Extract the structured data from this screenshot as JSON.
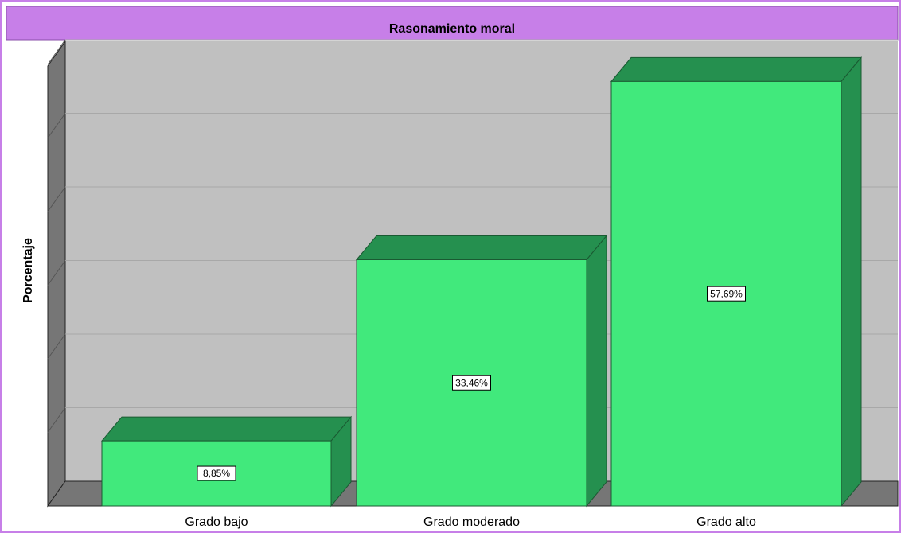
{
  "chart_data": {
    "type": "bar3d",
    "title": "Rasonamiento moral",
    "y_label": "Porcentaje",
    "categories": [
      "Grado bajo",
      "Grado moderado",
      "Grado alto"
    ],
    "values": [
      8.85,
      33.46,
      57.69
    ],
    "value_labels": [
      "8,85%",
      "33,46%",
      "57,69%"
    ],
    "color": "#41e97c",
    "side_color": "#25904f",
    "ylim": [
      0,
      60
    ],
    "yticks": [
      0,
      10,
      20,
      30,
      40,
      50,
      60
    ],
    "grid": true
  }
}
